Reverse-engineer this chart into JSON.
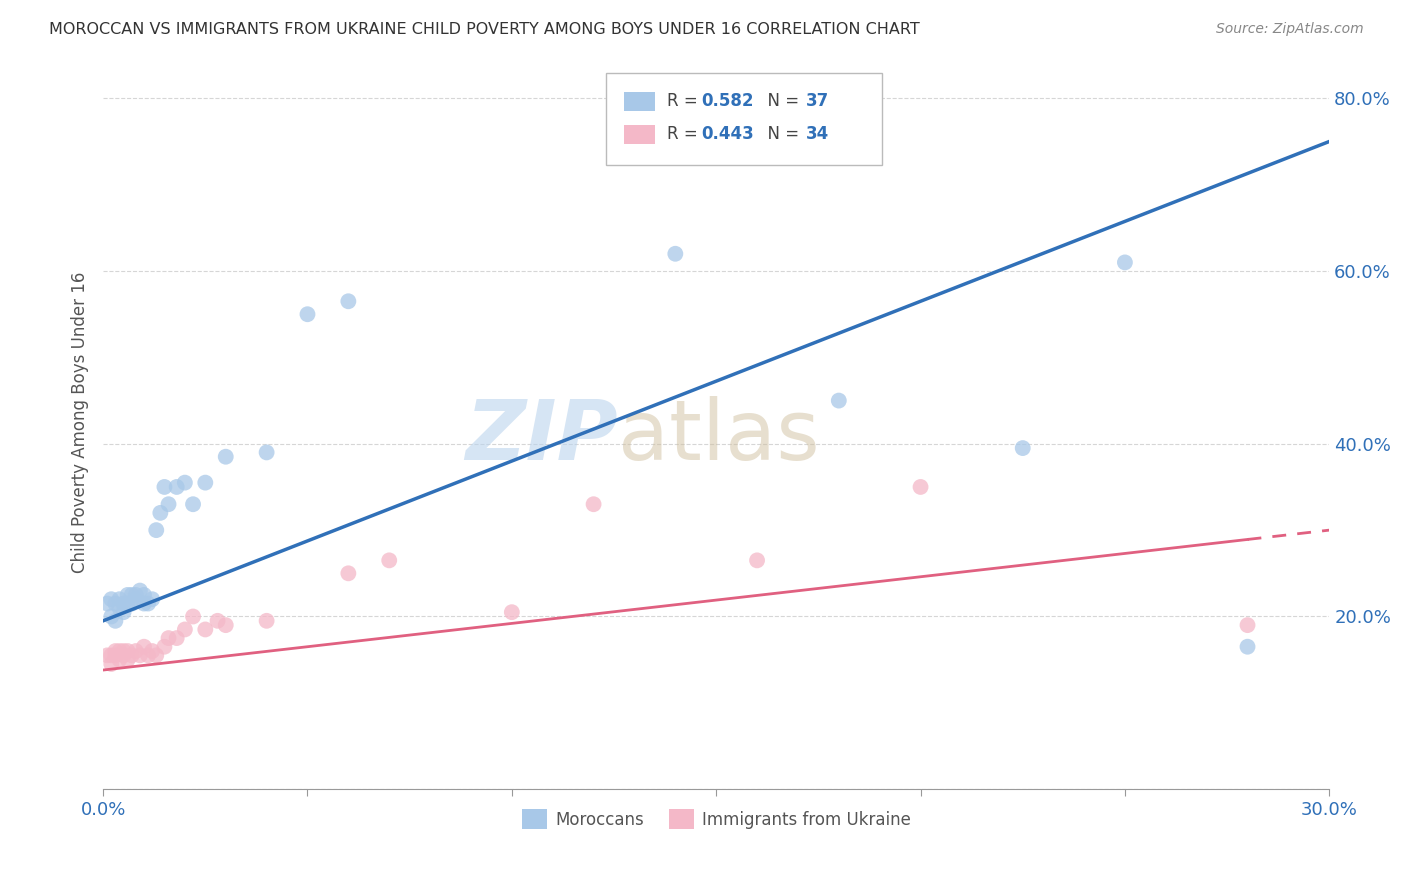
{
  "title": "MOROCCAN VS IMMIGRANTS FROM UKRAINE CHILD POVERTY AMONG BOYS UNDER 16 CORRELATION CHART",
  "source": "Source: ZipAtlas.com",
  "ylabel": "Child Poverty Among Boys Under 16",
  "xlim": [
    0.0,
    0.3
  ],
  "ylim": [
    0.0,
    0.85
  ],
  "moroccan_R": 0.582,
  "moroccan_N": 37,
  "ukraine_R": 0.443,
  "ukraine_N": 34,
  "moroccan_color": "#a8c8e8",
  "ukraine_color": "#f4b8c8",
  "moroccan_line_color": "#3070b8",
  "ukraine_line_color": "#e06080",
  "watermark_zip": "ZIP",
  "watermark_atlas": "atlas",
  "moroccan_line_b": 0.195,
  "moroccan_line_m": 1.85,
  "ukraine_line_b": 0.138,
  "ukraine_line_m": 0.54,
  "morocco_x": [
    0.001,
    0.002,
    0.002,
    0.003,
    0.003,
    0.004,
    0.004,
    0.005,
    0.005,
    0.006,
    0.006,
    0.007,
    0.007,
    0.008,
    0.008,
    0.009,
    0.01,
    0.01,
    0.011,
    0.012,
    0.013,
    0.014,
    0.015,
    0.016,
    0.018,
    0.02,
    0.022,
    0.025,
    0.03,
    0.04,
    0.05,
    0.06,
    0.14,
    0.18,
    0.225,
    0.25,
    0.28
  ],
  "morocco_y": [
    0.215,
    0.22,
    0.2,
    0.195,
    0.215,
    0.21,
    0.22,
    0.215,
    0.205,
    0.225,
    0.215,
    0.225,
    0.215,
    0.225,
    0.22,
    0.23,
    0.225,
    0.215,
    0.215,
    0.22,
    0.3,
    0.32,
    0.35,
    0.33,
    0.35,
    0.355,
    0.33,
    0.355,
    0.385,
    0.39,
    0.55,
    0.565,
    0.62,
    0.45,
    0.395,
    0.61,
    0.165
  ],
  "ukraine_x": [
    0.001,
    0.002,
    0.002,
    0.003,
    0.003,
    0.004,
    0.004,
    0.005,
    0.005,
    0.006,
    0.006,
    0.007,
    0.008,
    0.009,
    0.01,
    0.011,
    0.012,
    0.013,
    0.015,
    0.016,
    0.018,
    0.02,
    0.022,
    0.025,
    0.028,
    0.03,
    0.04,
    0.06,
    0.07,
    0.1,
    0.12,
    0.16,
    0.2,
    0.28
  ],
  "ukraine_y": [
    0.155,
    0.155,
    0.145,
    0.16,
    0.155,
    0.15,
    0.16,
    0.155,
    0.16,
    0.16,
    0.15,
    0.155,
    0.16,
    0.155,
    0.165,
    0.155,
    0.16,
    0.155,
    0.165,
    0.175,
    0.175,
    0.185,
    0.2,
    0.185,
    0.195,
    0.19,
    0.195,
    0.25,
    0.265,
    0.205,
    0.33,
    0.265,
    0.35,
    0.19
  ]
}
